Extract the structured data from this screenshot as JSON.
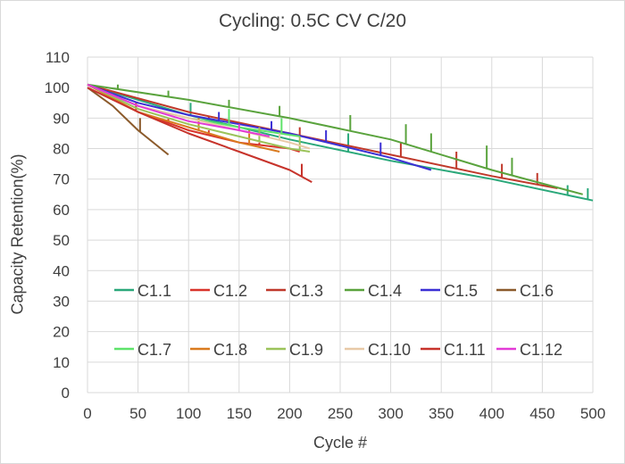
{
  "chart_data": {
    "type": "line",
    "title": "Cycling: 0.5C CV C/20",
    "xlabel": "Cycle #",
    "ylabel": "Capacity Retention(%)",
    "xlim": [
      0,
      500
    ],
    "ylim": [
      0,
      110
    ],
    "xticks": [
      0,
      50,
      100,
      150,
      200,
      250,
      300,
      350,
      400,
      450,
      500
    ],
    "yticks": [
      0,
      10,
      20,
      30,
      40,
      50,
      60,
      70,
      80,
      90,
      100,
      110
    ],
    "grid": true,
    "legend_position": "bottom-inside",
    "series": [
      {
        "name": "C1.1",
        "color": "#2aa87a",
        "x": [
          0,
          100,
          200,
          300,
          400,
          500
        ],
        "y": [
          101,
          91,
          83,
          76,
          70,
          63
        ],
        "spikes": [
          [
            102,
            95
          ],
          [
            258,
            85
          ],
          [
            475,
            68
          ],
          [
            495,
            67
          ]
        ]
      },
      {
        "name": "C1.2",
        "color": "#d9342b",
        "x": [
          0,
          50,
          100,
          150,
          200,
          210
        ],
        "y": [
          101,
          92,
          86,
          82,
          80,
          79
        ],
        "spikes": [
          [
            48,
            95
          ],
          [
            80,
            90
          ],
          [
            120,
            86
          ],
          [
            170,
            82
          ]
        ]
      },
      {
        "name": "C1.3",
        "color": "#c0392b",
        "x": [
          0,
          100,
          200,
          300,
          400,
          465
        ],
        "y": [
          101,
          92,
          85,
          78,
          71,
          67
        ],
        "spikes": [
          [
            120,
            90
          ],
          [
            210,
            87
          ],
          [
            310,
            82
          ],
          [
            365,
            79
          ],
          [
            410,
            75
          ],
          [
            445,
            72
          ]
        ]
      },
      {
        "name": "C1.4",
        "color": "#5aa33d",
        "x": [
          0,
          100,
          200,
          300,
          400,
          490
        ],
        "y": [
          101,
          96,
          90,
          83,
          73,
          65
        ],
        "spikes": [
          [
            30,
            101
          ],
          [
            80,
            99
          ],
          [
            140,
            96
          ],
          [
            190,
            94
          ],
          [
            260,
            91
          ],
          [
            315,
            88
          ],
          [
            340,
            85
          ],
          [
            395,
            81
          ],
          [
            420,
            77
          ]
        ]
      },
      {
        "name": "C1.5",
        "color": "#3b2fd4",
        "x": [
          0,
          50,
          100,
          150,
          200,
          250,
          300,
          340
        ],
        "y": [
          101,
          95,
          91,
          88,
          85,
          81,
          77,
          73
        ],
        "spikes": [
          [
            130,
            92
          ],
          [
            182,
            89
          ],
          [
            236,
            86
          ],
          [
            290,
            82
          ]
        ]
      },
      {
        "name": "C1.6",
        "color": "#8b5a2b",
        "x": [
          0,
          25,
          50,
          80
        ],
        "y": [
          100,
          94,
          86,
          78
        ],
        "spikes": [
          [
            52,
            90
          ]
        ]
      },
      {
        "name": "C1.7",
        "color": "#5ee36a",
        "x": [
          0,
          50,
          100,
          150,
          210
        ],
        "y": [
          101,
          94,
          90,
          87,
          84
        ],
        "spikes": [
          [
            140,
            93
          ],
          [
            192,
            90
          ]
        ]
      },
      {
        "name": "C1.8",
        "color": "#d97a1e",
        "x": [
          0,
          50,
          100,
          150,
          190
        ],
        "y": [
          101,
          92,
          87,
          82,
          79
        ],
        "spikes": [
          [
            110,
            90
          ],
          [
            160,
            86
          ]
        ]
      },
      {
        "name": "C1.9",
        "color": "#9bc35a",
        "x": [
          0,
          50,
          100,
          150,
          200,
          220
        ],
        "y": [
          101,
          93,
          88,
          84,
          80,
          79
        ],
        "spikes": [
          [
            170,
            87
          ],
          [
            210,
            84
          ]
        ]
      },
      {
        "name": "C1.10",
        "color": "#e8c9a7",
        "x": [
          0,
          50,
          100,
          150,
          200,
          220
        ],
        "y": [
          101,
          94,
          90,
          86,
          82,
          80
        ],
        "spikes": [
          [
            190,
            85
          ]
        ]
      },
      {
        "name": "C1.11",
        "color": "#c7332b",
        "x": [
          0,
          50,
          100,
          150,
          200,
          222
        ],
        "y": [
          100,
          92,
          85,
          79,
          73,
          69
        ],
        "spikes": [
          [
            212,
            75
          ]
        ]
      },
      {
        "name": "C1.12",
        "color": "#e23ad6",
        "x": [
          0,
          50,
          100,
          150,
          180
        ],
        "y": [
          101,
          94,
          89,
          86,
          84
        ],
        "spikes": [
          [
            150,
            88
          ]
        ]
      }
    ]
  }
}
